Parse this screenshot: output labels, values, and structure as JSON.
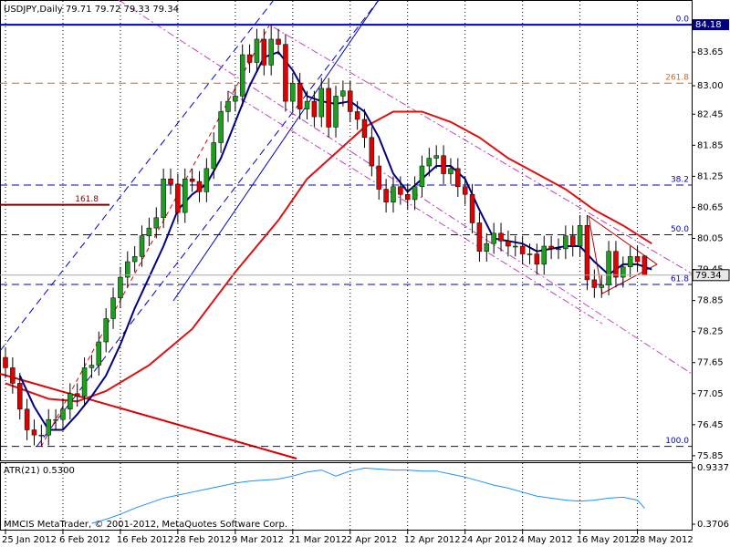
{
  "chart_data": [
    {
      "type": "candlestick",
      "title": "USDJPY,Daily  79.71 79.72 79.33 79.34",
      "footer": "MMCIS MetaTrader, © 2001-2012, MetaQuotes Software Corp.",
      "categories": [
        "25 Jan 2012",
        null,
        null,
        null,
        null,
        null,
        null,
        null,
        "6 Feb 2012",
        null,
        null,
        null,
        null,
        null,
        null,
        null,
        "16 Feb 2012",
        null,
        null,
        null,
        null,
        null,
        null,
        null,
        "28 Feb 2012",
        null,
        null,
        null,
        null,
        null,
        null,
        null,
        "9 Mar 2012",
        null,
        null,
        null,
        null,
        null,
        null,
        null,
        "21 Mar 2012",
        null,
        null,
        null,
        null,
        null,
        null,
        null,
        "2 Apr 2012",
        null,
        null,
        null,
        null,
        null,
        null,
        null,
        "12 Apr 2012",
        null,
        null,
        null,
        null,
        null,
        null,
        null,
        "24 Apr 2012",
        null,
        null,
        null,
        null,
        null,
        null,
        null,
        "4 May 2012",
        null,
        null,
        null,
        null,
        null,
        null,
        null,
        "16 May 2012",
        null,
        null,
        null,
        null,
        null,
        null,
        null,
        "28 May 2012",
        null
      ],
      "open": [
        77.75,
        77.55,
        77.25,
        76.75,
        76.35,
        76.25,
        76.25,
        76.55,
        76.55,
        76.75,
        77.05,
        77,
        77.55,
        77.6,
        78.05,
        78.5,
        78.9,
        79.3,
        79.6,
        79.7,
        80.1,
        80.25,
        80.45,
        81.2,
        81.1,
        80.55,
        81.2,
        81.15,
        80.95,
        81.4,
        81.9,
        82.5,
        82.7,
        82.8,
        83.6,
        83.45,
        83.9,
        83.4,
        83.9,
        83.8,
        82.7,
        83.05,
        82.55,
        82.7,
        82.4,
        82.95,
        82.2,
        82.8,
        82.9,
        82.5,
        82.35,
        82,
        81.45,
        81,
        80.75,
        81.05,
        80.9,
        80.8,
        81.05,
        81.45,
        81.6,
        81.65,
        81.3,
        81.4,
        81.05,
        80.9,
        80.35,
        79.8,
        79.95,
        80.15,
        80,
        79.9,
        79.9,
        79.75,
        79.75,
        79.55,
        79.9,
        79.85,
        79.85,
        80.1,
        79.9,
        80.3,
        79.25,
        79.1,
        79.15,
        79.8,
        79.3,
        79.5,
        79.7,
        79.71
      ],
      "high": [
        77.95,
        77.75,
        77.45,
        76.95,
        76.55,
        76.45,
        76.75,
        76.75,
        76.95,
        77.25,
        77.25,
        77.75,
        77.8,
        78.25,
        78.7,
        79.1,
        79.5,
        79.8,
        79.9,
        80.3,
        80.45,
        80.65,
        81.4,
        81.4,
        81.3,
        81.4,
        81.4,
        81.35,
        81.6,
        82.1,
        82.7,
        82.9,
        83,
        83.8,
        83.8,
        84.1,
        84.1,
        84.18,
        84.1,
        84,
        83.25,
        83.25,
        82.9,
        82.9,
        83.15,
        83.15,
        83,
        83.1,
        83.1,
        82.7,
        82.55,
        82.2,
        81.65,
        81.2,
        81.25,
        81.25,
        81.1,
        81.25,
        81.65,
        81.8,
        81.85,
        81.85,
        81.6,
        81.6,
        81.25,
        81.1,
        80.55,
        80.15,
        80.35,
        80.35,
        80.2,
        80.1,
        80.1,
        79.95,
        79.95,
        80.1,
        80.1,
        80.05,
        80.3,
        80.3,
        80.5,
        80.5,
        79.45,
        79.35,
        80,
        80,
        79.7,
        79.9,
        79.9,
        79.72
      ],
      "low": [
        77.35,
        77.05,
        76.55,
        76.15,
        76.05,
        76.05,
        76.05,
        76.35,
        76.35,
        76.55,
        76.8,
        76.8,
        77.35,
        77.4,
        77.85,
        78.3,
        78.7,
        79.1,
        79.4,
        79.5,
        79.9,
        80.05,
        80.25,
        80.9,
        80.35,
        80.35,
        80.95,
        80.75,
        80.75,
        81.2,
        81.7,
        82.3,
        82.5,
        82.6,
        83.25,
        83.25,
        83.2,
        83.2,
        83.6,
        82.5,
        82.5,
        82.35,
        82.35,
        82.2,
        82.2,
        82,
        82,
        82.6,
        82.3,
        82.15,
        81.8,
        81.25,
        80.8,
        80.55,
        80.55,
        80.7,
        80.6,
        80.6,
        80.85,
        81.25,
        81.4,
        81.1,
        81.1,
        80.85,
        80.7,
        80.15,
        79.6,
        79.6,
        79.75,
        79.8,
        79.7,
        79.7,
        79.55,
        79.55,
        79.35,
        79.35,
        79.65,
        79.65,
        79.65,
        79.7,
        79.7,
        79.05,
        78.9,
        78.9,
        78.95,
        79.1,
        79.1,
        79.3,
        79.4,
        79.33
      ],
      "close": [
        77.55,
        77.25,
        76.75,
        76.35,
        76.25,
        76.25,
        76.55,
        76.55,
        76.75,
        77.05,
        77,
        77.55,
        77.6,
        78.05,
        78.5,
        78.9,
        79.3,
        79.6,
        79.7,
        80.1,
        80.25,
        80.45,
        81.2,
        81.1,
        80.55,
        81.2,
        81.15,
        80.95,
        81.4,
        81.9,
        82.5,
        82.7,
        82.8,
        83.6,
        83.45,
        83.9,
        83.4,
        83.9,
        83.8,
        82.7,
        83.05,
        82.55,
        82.7,
        82.4,
        82.95,
        82.2,
        82.8,
        82.9,
        82.5,
        82.35,
        82,
        81.45,
        81,
        80.75,
        81.05,
        80.9,
        80.8,
        81.05,
        81.45,
        81.6,
        81.65,
        81.3,
        81.4,
        81.05,
        80.9,
        80.35,
        79.8,
        79.95,
        80.15,
        80,
        79.9,
        79.9,
        79.75,
        79.75,
        79.55,
        79.9,
        79.85,
        79.85,
        80.1,
        79.9,
        80.3,
        79.25,
        79.1,
        79.15,
        79.8,
        79.3,
        79.5,
        79.7,
        79.6,
        79.34
      ],
      "up_color": "#1e9e1e",
      "down_color": "#e00000",
      "ylim": [
        75.76,
        84.34
      ],
      "yticks": [
        83.65,
        {
          "value": 83,
          "label": "83.00"
        },
        82.45,
        81.85,
        81.25,
        80.65,
        80.05,
        79.45,
        78.85,
        78.25,
        77.65,
        77.05,
        76.45,
        75.85
      ],
      "grid": true,
      "lines": [
        {
          "color": "#e01010",
          "x": [
            0,
            6,
            10,
            14,
            20,
            26,
            32,
            38,
            42,
            46,
            50,
            54,
            58,
            62,
            66,
            70,
            74,
            78,
            82,
            86,
            90
          ],
          "values": [
            77.25,
            76.95,
            76.9,
            77.1,
            77.6,
            78.3,
            79.4,
            80.4,
            81.2,
            81.7,
            82.2,
            82.5,
            82.5,
            82.3,
            82,
            81.6,
            81.3,
            81,
            80.6,
            80.3,
            79.95
          ]
        },
        {
          "color": "#000080",
          "x": [
            2,
            4,
            6,
            8,
            10,
            12,
            14,
            16,
            18,
            20,
            22,
            24,
            26,
            28,
            30,
            32,
            34,
            36,
            38,
            40,
            42,
            44,
            46,
            48,
            50,
            52,
            54,
            56,
            58,
            60,
            62,
            64,
            66,
            68,
            70,
            72,
            74,
            76,
            78,
            80,
            82,
            84,
            86,
            88,
            90
          ],
          "values": [
            77.4,
            76.8,
            76.35,
            76.35,
            76.65,
            77,
            77.4,
            78,
            78.7,
            79.3,
            79.9,
            80.6,
            80.9,
            81.1,
            81.6,
            82.3,
            83,
            83.55,
            83.65,
            83.3,
            82.8,
            82.7,
            82.65,
            82.7,
            82.5,
            82,
            81.3,
            80.95,
            81.2,
            81.45,
            81.45,
            81.2,
            80.6,
            80.05,
            80,
            79.95,
            79.8,
            79.85,
            79.9,
            79.9,
            79.6,
            79.35,
            79.55,
            79.55,
            79.45
          ]
        }
      ],
      "levels": [
        {
          "value": 84.18,
          "label": "0.0",
          "color": "#0000c0",
          "style": "solid"
        },
        {
          "value": 83.05,
          "label": "261.8",
          "color": "#d2691e",
          "style": "dash"
        },
        {
          "value": 81.08,
          "label": "38.2",
          "color": "#0000c0",
          "style": "dash"
        },
        {
          "value": 80.12,
          "label": "50.0",
          "color": "#0000c0",
          "style": "dash"
        },
        {
          "value": 79.16,
          "label": "61.8",
          "color": "#0000c0",
          "style": "dash"
        },
        {
          "value": 76.03,
          "label": "100.0",
          "color": "#0000c0",
          "style": "dash"
        },
        {
          "value": 80.7,
          "label": "161.8",
          "color": "#800000",
          "style": "short"
        }
      ]
    },
    {
      "type": "line",
      "title": "ATR(21) 0.5300",
      "x": [
        12,
        14,
        16,
        18,
        20,
        22,
        24,
        26,
        28,
        30,
        32,
        34,
        36,
        38,
        40,
        42,
        44,
        46,
        48,
        50,
        52,
        54,
        56,
        58,
        60,
        62,
        64,
        66,
        68,
        70,
        72,
        74,
        76,
        78,
        80,
        82,
        84,
        86,
        88,
        89
      ],
      "values": [
        0.38,
        0.42,
        0.47,
        0.53,
        0.58,
        0.63,
        0.66,
        0.69,
        0.72,
        0.75,
        0.78,
        0.8,
        0.81,
        0.82,
        0.85,
        0.89,
        0.91,
        0.85,
        0.9,
        0.93,
        0.92,
        0.91,
        0.91,
        0.9,
        0.9,
        0.87,
        0.84,
        0.8,
        0.76,
        0.73,
        0.69,
        0.65,
        0.63,
        0.61,
        0.6,
        0.61,
        0.63,
        0.64,
        0.61,
        0.53
      ],
      "color": "#1e90ff",
      "ylim": [
        0.307,
        0.988
      ],
      "yticks": [
        0.9337,
        0.3706
      ]
    }
  ]
}
